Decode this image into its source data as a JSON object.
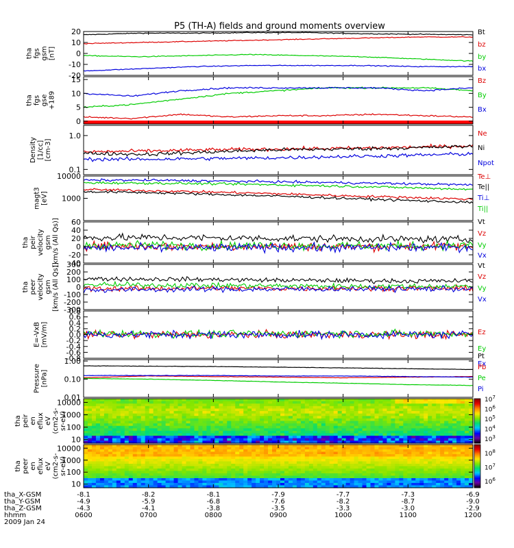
{
  "title": "P5 (TH-A) fields and ground moments overview",
  "chart_data": [
    {
      "type": "line",
      "ylabel": [
        "tha",
        "fgs",
        "gsm",
        "[nT]"
      ],
      "ylim": [
        -20,
        20
      ],
      "ylog": false,
      "yticks": [
        "20",
        "10",
        "0",
        "-10",
        "-20"
      ],
      "ytick_values": [
        20,
        10,
        0,
        -10,
        -20
      ],
      "series": [
        {
          "name": "Bt",
          "color": "#000000",
          "values": [
            17,
            18.5,
            18.5,
            19,
            19,
            18,
            17.5,
            17
          ]
        },
        {
          "name": "bz",
          "color": "#dd0000",
          "values": [
            9,
            10,
            11,
            12,
            13,
            14,
            15,
            15
          ]
        },
        {
          "name": "by",
          "color": "#00cc00",
          "values": [
            -2,
            -3,
            -2,
            -1,
            -2,
            -3,
            -5,
            -7
          ]
        },
        {
          "name": "bx",
          "color": "#0000dd",
          "values": [
            -16,
            -14,
            -12,
            -11,
            -11,
            -11,
            -12,
            -12
          ]
        }
      ]
    },
    {
      "type": "line",
      "ylabel": [
        "tha",
        "fgs",
        "gse",
        "+189"
      ],
      "ylim": [
        -1,
        16
      ],
      "ylog": false,
      "yticks": [
        "15",
        "10",
        "5",
        "0"
      ],
      "ytick_values": [
        15,
        10,
        5,
        0
      ],
      "series": [
        {
          "name": "Bz",
          "color": "#dd0000",
          "values": [
            1.5,
            1,
            2.5,
            1.5,
            2,
            2,
            2.5,
            2,
            1.5
          ]
        },
        {
          "name": "By",
          "color": "#00cc00",
          "values": [
            5,
            6,
            8,
            10,
            11,
            12,
            12,
            12,
            11
          ]
        },
        {
          "name": "Bx",
          "color": "#0000dd",
          "values": [
            10,
            9,
            11,
            12,
            12,
            12,
            12,
            11,
            12
          ]
        }
      ]
    },
    {
      "type": "line",
      "ylabel": [
        "Density",
        "[1/cc]",
        "[cm-3]"
      ],
      "ylim": [
        0.07,
        2
      ],
      "ylog": true,
      "yticks": [
        "1.0",
        "0.1"
      ],
      "ytick_values": [
        1.0,
        0.1
      ],
      "series": [
        {
          "name": "Ne",
          "color": "#dd0000",
          "values": [
            0.33,
            0.35,
            0.38,
            0.4,
            0.42,
            0.45,
            0.5
          ]
        },
        {
          "name": "Ni",
          "color": "#000000",
          "values": [
            0.3,
            0.28,
            0.33,
            0.38,
            0.4,
            0.43,
            0.48
          ]
        },
        {
          "name": "Npot",
          "color": "#0000dd",
          "values": [
            0.2,
            0.2,
            0.21,
            0.22,
            0.24,
            0.26,
            0.29
          ]
        }
      ]
    },
    {
      "type": "line",
      "ylabel": [
        "magt3",
        "[eV]"
      ],
      "ylim": [
        100,
        10000
      ],
      "ylog": true,
      "yticks": [
        "10000",
        "1000"
      ],
      "ytick_values": [
        10000,
        1000
      ],
      "series": [
        {
          "name": "Te⊥",
          "color": "#dd0000",
          "values": [
            2500,
            2200,
            1900,
            1600,
            1300,
            1100,
            900
          ]
        },
        {
          "name": "Te||",
          "color": "#000000",
          "values": [
            2000,
            1800,
            1500,
            1250,
            1000,
            800,
            650
          ]
        },
        {
          "name": "Ti⊥",
          "color": "#0000dd",
          "values": [
            6500,
            6500,
            6000,
            5500,
            5000,
            4500,
            4000
          ]
        },
        {
          "name": "Ti||",
          "color": "#00cc00",
          "values": [
            5000,
            4800,
            4500,
            4000,
            3500,
            3000,
            2500
          ]
        }
      ]
    },
    {
      "type": "line",
      "ylabel": [
        "tha",
        "peir",
        "velocity",
        "gsm",
        "[km/s (All Qs)]"
      ],
      "ylim": [
        -40,
        60
      ],
      "ylog": false,
      "yticks": [
        "60",
        "40",
        "20",
        "0",
        "-20",
        "-40"
      ],
      "ytick_values": [
        60,
        40,
        20,
        0,
        -20,
        -40
      ],
      "series": [
        {
          "name": "Vt",
          "color": "#000000",
          "values": [
            22,
            22,
            21,
            20,
            19,
            18,
            17
          ]
        },
        {
          "name": "Vz",
          "color": "#dd0000",
          "values": [
            2,
            1,
            0,
            1,
            0,
            1,
            0
          ]
        },
        {
          "name": "Vy",
          "color": "#00cc00",
          "values": [
            3,
            4,
            2,
            3,
            2,
            2,
            3
          ]
        },
        {
          "name": "Vx",
          "color": "#0000dd",
          "values": [
            -3,
            -4,
            -3,
            -2,
            -3,
            -2,
            -2
          ]
        }
      ]
    },
    {
      "type": "line",
      "ylabel": [
        "tha",
        "peer",
        "velocity",
        "gsm",
        "[km/s (All Qs)]"
      ],
      "ylim": [
        -300,
        300
      ],
      "ylog": false,
      "yticks": [
        "300",
        "200",
        "100",
        "0",
        "-100",
        "-200",
        "-300"
      ],
      "ytick_values": [
        300,
        200,
        100,
        0,
        -100,
        -200,
        -300
      ],
      "series": [
        {
          "name": "Vt",
          "color": "#000000",
          "values": [
            110,
            105,
            100,
            90,
            85,
            80,
            80
          ]
        },
        {
          "name": "Vz",
          "color": "#dd0000",
          "values": [
            -20,
            -20,
            -15,
            -20,
            -15,
            -15,
            -20
          ]
        },
        {
          "name": "Vy",
          "color": "#00cc00",
          "values": [
            30,
            25,
            20,
            15,
            10,
            10,
            10
          ]
        },
        {
          "name": "Vx",
          "color": "#0000dd",
          "values": [
            -40,
            -35,
            -30,
            -30,
            -25,
            -25,
            -25
          ]
        }
      ]
    },
    {
      "type": "line",
      "ylabel": [
        "E=-VxB",
        "[mV/m]"
      ],
      "ylim": [
        -0.8,
        0.8
      ],
      "ylog": false,
      "yticks": [
        "0.8",
        "0.6",
        "0.4",
        "0.2",
        "0.0",
        "-0.2",
        "-0.4",
        "-0.6",
        "-0.8"
      ],
      "ytick_values": [
        0.8,
        0.6,
        0.4,
        0.2,
        0.0,
        -0.2,
        -0.4,
        -0.6,
        -0.8
      ],
      "series": [
        {
          "name": "Ez",
          "color": "#dd0000",
          "values": [
            0,
            0,
            0,
            0,
            0,
            0,
            0
          ]
        },
        {
          "name": "Ey",
          "color": "#00cc00",
          "values": [
            0.05,
            0.03,
            0.02,
            0.03,
            0.04,
            0.02,
            0.03
          ]
        },
        {
          "name": "Ex",
          "color": "#0000dd",
          "values": [
            0,
            0,
            0,
            0,
            0,
            0,
            0
          ]
        }
      ]
    },
    {
      "type": "line",
      "ylabel": [
        "Pressure",
        "[nPa]"
      ],
      "ylim": [
        0.01,
        1.2
      ],
      "ylog": true,
      "yticks": [
        "1.00",
        "0.10",
        "0.01"
      ],
      "ytick_values": [
        1.0,
        0.1,
        0.01
      ],
      "series": [
        {
          "name": "Pt",
          "color": "#000000",
          "values": [
            0.55,
            0.52,
            0.5,
            0.46,
            0.42,
            0.38,
            0.34
          ]
        },
        {
          "name": "Pb",
          "color": "#dd0000",
          "values": [
            0.12,
            0.15,
            0.14,
            0.13,
            0.12,
            0.13,
            0.14
          ]
        },
        {
          "name": "Pe",
          "color": "#00cc00",
          "values": [
            0.11,
            0.1,
            0.085,
            0.07,
            0.06,
            0.05,
            0.045
          ]
        },
        {
          "name": "Pi",
          "color": "#0000dd",
          "values": [
            0.16,
            0.16,
            0.16,
            0.15,
            0.15,
            0.14,
            0.13
          ]
        }
      ]
    },
    {
      "type": "heatmap",
      "ylabel": [
        "tha",
        "peir",
        "en",
        "eflux",
        "eV",
        "(cm2-s-",
        "sr-eV)"
      ],
      "ylim": [
        5,
        20000
      ],
      "ylog": true,
      "yticks": [
        "10000",
        "1000",
        "100",
        "10"
      ],
      "ytick_values": [
        10000,
        1000,
        100,
        10
      ],
      "colorbar": {
        "ticks": [
          "10^7",
          "10^6",
          "10^5",
          "10^4",
          "10^3"
        ],
        "range_exp": [
          2.5,
          7
        ]
      }
    },
    {
      "type": "heatmap",
      "ylabel": [
        "tha",
        "peer",
        "en",
        "eflux",
        "eV",
        "(cm2-s-",
        "sr-eV)"
      ],
      "ylim": [
        5,
        20000
      ],
      "ylog": true,
      "yticks": [
        "10000",
        "1000",
        "100",
        "10"
      ],
      "ytick_values": [
        10000,
        1000,
        100,
        10
      ],
      "colorbar": {
        "ticks": [
          "10^8",
          "10^7",
          "10^6"
        ],
        "range_exp": [
          5.5,
          8.6
        ]
      }
    }
  ],
  "xaxis": {
    "ticks": [
      "0600",
      "0700",
      "0800",
      "0900",
      "1000",
      "1100",
      "1200"
    ],
    "rows": [
      {
        "label": "tha_X-GSM",
        "values": [
          "-8.1",
          "-8.2",
          "-8.1",
          "-7.9",
          "-7.7",
          "-7.3",
          "-6.9"
        ]
      },
      {
        "label": "tha_Y-GSM",
        "values": [
          "-4.9",
          "-5.9",
          "-6.8",
          "-7.6",
          "-8.2",
          "-8.7",
          "-9.0"
        ]
      },
      {
        "label": "tha_Z-GSM",
        "values": [
          "-4.3",
          "-4.1",
          "-3.8",
          "-3.5",
          "-3.3",
          "-3.0",
          "-2.9"
        ]
      },
      {
        "label": "hhmm",
        "values": [
          "0600",
          "0700",
          "0800",
          "0900",
          "1000",
          "1100",
          "1200"
        ]
      }
    ],
    "date": "2009 Jan 24"
  }
}
